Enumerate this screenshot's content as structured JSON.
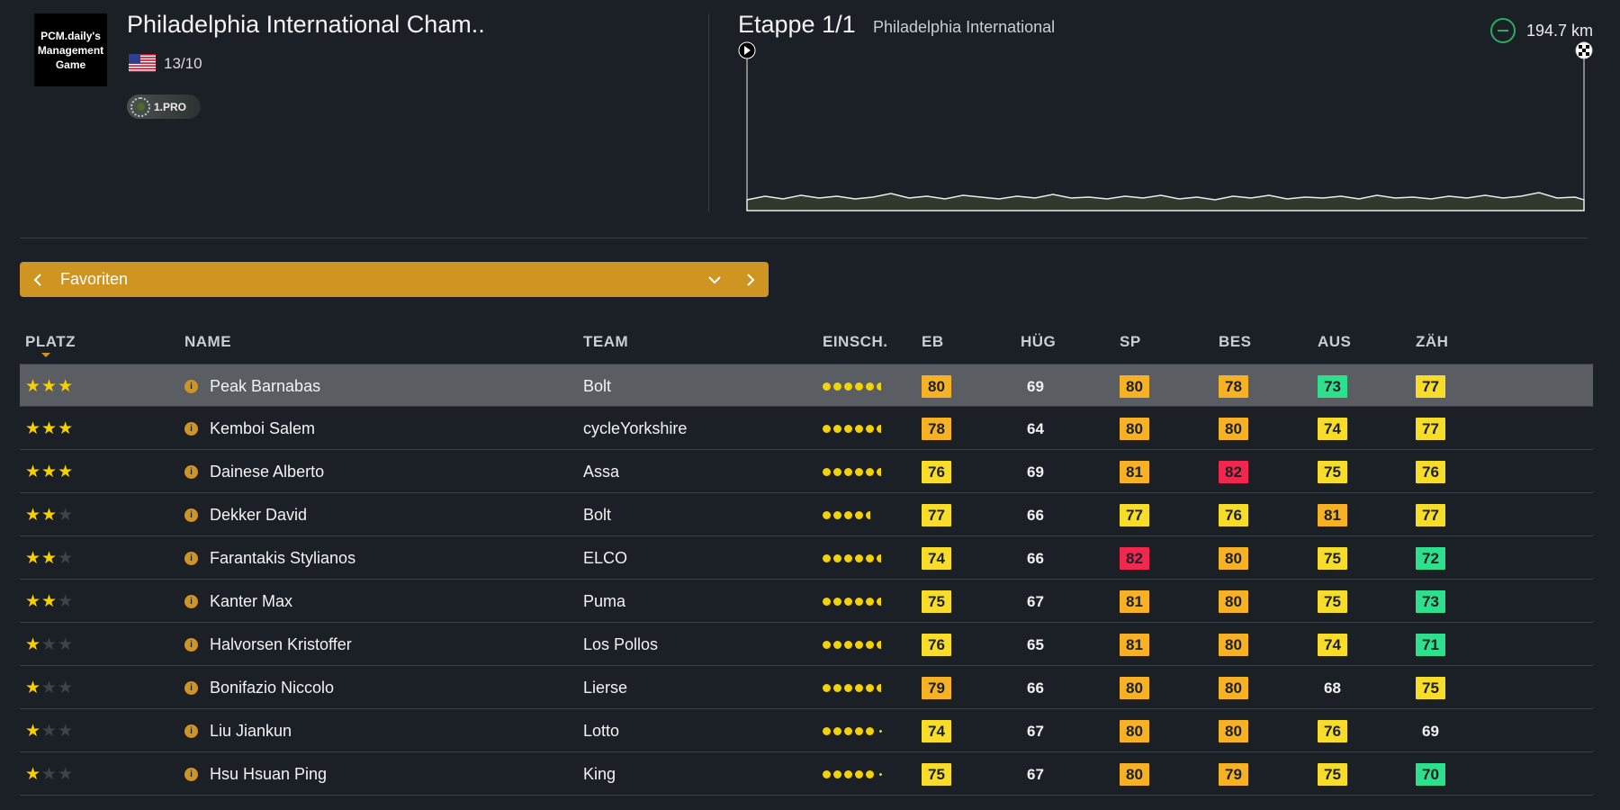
{
  "header": {
    "logo_text": "PCM.daily's Management Game",
    "race_title": "Philadelphia International Cham..",
    "race_date": "13/10",
    "race_class": "1.PRO",
    "stage_label": "Etappe 1/1",
    "stage_name": "Philadelphia International",
    "distance": "194.7 km"
  },
  "selector": {
    "label": "Favoriten"
  },
  "columns": {
    "rank": "PLATZ",
    "name": "NAME",
    "team": "TEAM",
    "form": "EINSCH.",
    "eb": "EB",
    "hug": "HÜG",
    "sp": "SP",
    "bes": "BES",
    "aus": "AUS",
    "zah": "ZÄH"
  },
  "colors": {
    "green": "#2ee08c",
    "yellow": "#f7dc2a",
    "orange": "#f6b224",
    "red": "#f0284f",
    "accent": "#cf9522"
  },
  "riders": [
    {
      "stars": 3,
      "name": "Peak Barnabas",
      "team": "Bolt",
      "form": 5.5,
      "stats": [
        {
          "v": "80",
          "c": "orange"
        },
        {
          "v": "69",
          "c": "plain"
        },
        {
          "v": "80",
          "c": "orange"
        },
        {
          "v": "78",
          "c": "orange"
        },
        {
          "v": "73",
          "c": "green"
        },
        {
          "v": "77",
          "c": "yellow"
        }
      ]
    },
    {
      "stars": 3,
      "name": "Kemboi Salem",
      "team": "cycleYorkshire",
      "form": 5.5,
      "stats": [
        {
          "v": "78",
          "c": "orange"
        },
        {
          "v": "64",
          "c": "plain"
        },
        {
          "v": "80",
          "c": "orange"
        },
        {
          "v": "80",
          "c": "orange"
        },
        {
          "v": "74",
          "c": "yellow"
        },
        {
          "v": "77",
          "c": "yellow"
        }
      ]
    },
    {
      "stars": 3,
      "name": "Dainese Alberto",
      "team": "Assa",
      "form": 5.5,
      "stats": [
        {
          "v": "76",
          "c": "yellow"
        },
        {
          "v": "69",
          "c": "plain"
        },
        {
          "v": "81",
          "c": "orange"
        },
        {
          "v": "82",
          "c": "red"
        },
        {
          "v": "75",
          "c": "yellow"
        },
        {
          "v": "76",
          "c": "yellow"
        }
      ]
    },
    {
      "stars": 2,
      "name": "Dekker David",
      "team": "Bolt",
      "form": 4.5,
      "stats": [
        {
          "v": "77",
          "c": "yellow"
        },
        {
          "v": "66",
          "c": "plain"
        },
        {
          "v": "77",
          "c": "yellow"
        },
        {
          "v": "76",
          "c": "yellow"
        },
        {
          "v": "81",
          "c": "orange"
        },
        {
          "v": "77",
          "c": "yellow"
        }
      ]
    },
    {
      "stars": 2,
      "name": "Farantakis Stylianos",
      "team": "ELCO",
      "form": 5.5,
      "stats": [
        {
          "v": "74",
          "c": "yellow"
        },
        {
          "v": "66",
          "c": "plain"
        },
        {
          "v": "82",
          "c": "red"
        },
        {
          "v": "80",
          "c": "orange"
        },
        {
          "v": "75",
          "c": "yellow"
        },
        {
          "v": "72",
          "c": "green"
        }
      ]
    },
    {
      "stars": 2,
      "name": "Kanter Max",
      "team": "Puma",
      "form": 5.5,
      "stats": [
        {
          "v": "75",
          "c": "yellow"
        },
        {
          "v": "67",
          "c": "plain"
        },
        {
          "v": "81",
          "c": "orange"
        },
        {
          "v": "80",
          "c": "orange"
        },
        {
          "v": "75",
          "c": "yellow"
        },
        {
          "v": "73",
          "c": "green"
        }
      ]
    },
    {
      "stars": 1,
      "name": "Halvorsen Kristoffer",
      "team": "Los Pollos",
      "form": 5.5,
      "stats": [
        {
          "v": "76",
          "c": "yellow"
        },
        {
          "v": "65",
          "c": "plain"
        },
        {
          "v": "81",
          "c": "orange"
        },
        {
          "v": "80",
          "c": "orange"
        },
        {
          "v": "74",
          "c": "yellow"
        },
        {
          "v": "71",
          "c": "green"
        }
      ]
    },
    {
      "stars": 1,
      "name": "Bonifazio Niccolo",
      "team": "Lierse",
      "form": 5.5,
      "stats": [
        {
          "v": "79",
          "c": "orange"
        },
        {
          "v": "66",
          "c": "plain"
        },
        {
          "v": "80",
          "c": "orange"
        },
        {
          "v": "80",
          "c": "orange"
        },
        {
          "v": "68",
          "c": "plain"
        },
        {
          "v": "75",
          "c": "yellow"
        }
      ]
    },
    {
      "stars": 1,
      "name": "Liu Jiankun",
      "team": "Lotto",
      "form": 5,
      "stats": [
        {
          "v": "74",
          "c": "yellow"
        },
        {
          "v": "67",
          "c": "plain"
        },
        {
          "v": "80",
          "c": "orange"
        },
        {
          "v": "80",
          "c": "orange"
        },
        {
          "v": "76",
          "c": "yellow"
        },
        {
          "v": "69",
          "c": "plain"
        }
      ]
    },
    {
      "stars": 1,
      "name": "Hsu Hsuan Ping",
      "team": "King",
      "form": 5,
      "stats": [
        {
          "v": "75",
          "c": "yellow"
        },
        {
          "v": "67",
          "c": "plain"
        },
        {
          "v": "80",
          "c": "orange"
        },
        {
          "v": "79",
          "c": "orange"
        },
        {
          "v": "75",
          "c": "yellow"
        },
        {
          "v": "70",
          "c": "green"
        }
      ]
    }
  ]
}
